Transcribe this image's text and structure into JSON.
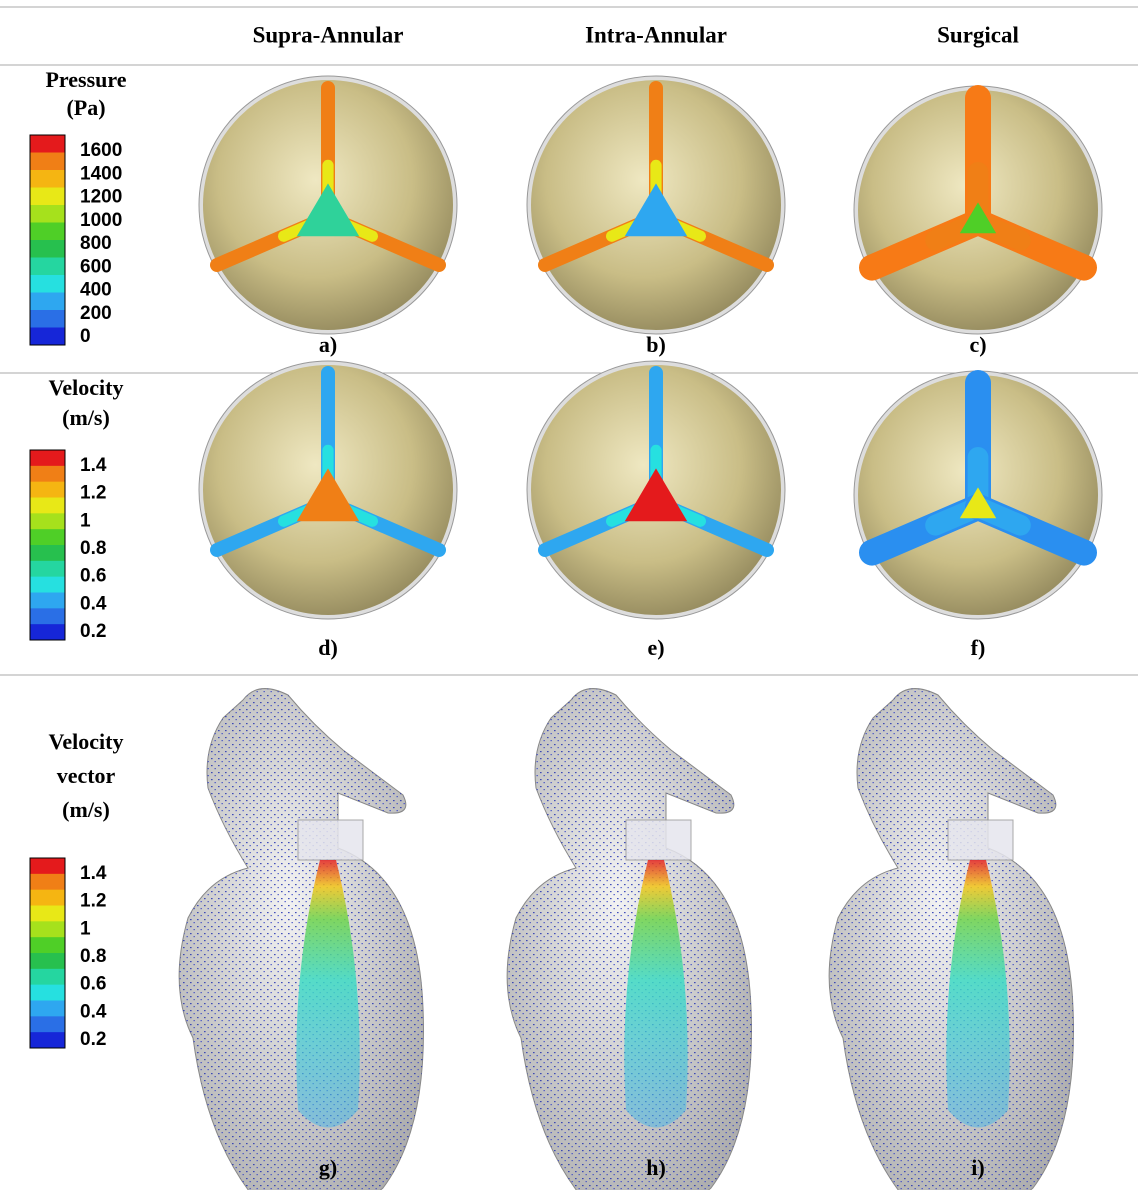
{
  "columns": [
    "Supra-Annular",
    "Intra-Annular",
    "Surgical"
  ],
  "rows": [
    {
      "label_lines": [
        "Pressure",
        "(Pa)"
      ],
      "legend": [
        "1600",
        "1400",
        "1200",
        "1000",
        "800",
        "600",
        "400",
        "200",
        "0"
      ],
      "panels": [
        "a)",
        "b)",
        "c)"
      ]
    },
    {
      "label_lines": [
        "Velocity",
        "(m/s)"
      ],
      "legend": [
        "1.4",
        "1.2",
        "1",
        "0.8",
        "0.6",
        "0.4",
        "0.2"
      ],
      "panels": [
        "d)",
        "e)",
        "f)"
      ]
    },
    {
      "label_lines": [
        "Velocity",
        "vector",
        "(m/s)"
      ],
      "legend": [
        "1.4",
        "1.2",
        "1",
        "0.8",
        "0.6",
        "0.4",
        "0.2"
      ],
      "panels": [
        "g)",
        "h)",
        "i)"
      ]
    }
  ]
}
